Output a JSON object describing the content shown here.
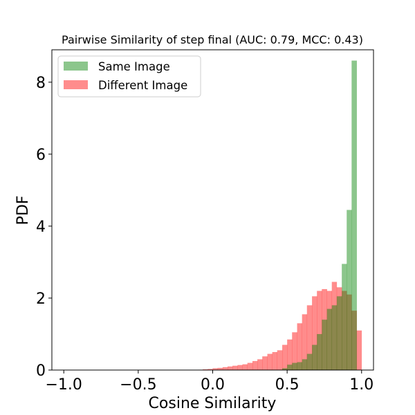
{
  "chart_data": {
    "type": "bar",
    "title": "Pairwise Similarity of step final (AUC: 0.79, MCC: 0.43)",
    "xlabel": "Cosine Similarity",
    "ylabel": "PDF",
    "xlim": [
      -1.08,
      1.08
    ],
    "ylim": [
      0,
      8.9
    ],
    "xticks": [
      -1.0,
      -0.5,
      0.0,
      0.5,
      1.0
    ],
    "xtick_labels": [
      "−1.0",
      "−0.5",
      "0.0",
      "0.5",
      "1.0"
    ],
    "yticks": [
      0,
      2,
      4,
      6,
      8
    ],
    "ytick_labels": [
      "0",
      "2",
      "4",
      "6",
      "8"
    ],
    "grid": false,
    "legend_position": "upper-left",
    "series": [
      {
        "name": "Different Image",
        "color": "#ff0000",
        "alpha": 0.45,
        "bins": [
          [
            -0.1,
            -0.067,
            0.01
          ],
          [
            -0.067,
            -0.033,
            0.02
          ],
          [
            -0.033,
            0.0,
            0.03
          ],
          [
            0.0,
            0.033,
            0.05
          ],
          [
            0.033,
            0.067,
            0.06
          ],
          [
            0.067,
            0.1,
            0.08
          ],
          [
            0.1,
            0.133,
            0.1
          ],
          [
            0.133,
            0.167,
            0.12
          ],
          [
            0.167,
            0.2,
            0.14
          ],
          [
            0.2,
            0.233,
            0.16
          ],
          [
            0.233,
            0.267,
            0.2
          ],
          [
            0.267,
            0.3,
            0.25
          ],
          [
            0.3,
            0.333,
            0.3
          ],
          [
            0.333,
            0.367,
            0.38
          ],
          [
            0.367,
            0.4,
            0.45
          ],
          [
            0.4,
            0.433,
            0.5
          ],
          [
            0.433,
            0.467,
            0.55
          ],
          [
            0.467,
            0.5,
            0.7
          ],
          [
            0.5,
            0.533,
            0.85
          ],
          [
            0.533,
            0.567,
            1.05
          ],
          [
            0.567,
            0.6,
            1.3
          ],
          [
            0.6,
            0.633,
            1.55
          ],
          [
            0.633,
            0.667,
            1.8
          ],
          [
            0.667,
            0.7,
            2.05
          ],
          [
            0.7,
            0.733,
            2.2
          ],
          [
            0.733,
            0.767,
            2.25
          ],
          [
            0.767,
            0.8,
            2.2
          ],
          [
            0.8,
            0.833,
            2.45
          ],
          [
            0.833,
            0.867,
            2.3
          ],
          [
            0.867,
            0.9,
            2.2
          ],
          [
            0.9,
            0.933,
            2.1
          ],
          [
            0.933,
            0.967,
            1.65
          ],
          [
            0.967,
            1.0,
            1.1
          ]
        ]
      },
      {
        "name": "Same Image",
        "color": "#008000",
        "alpha": 0.45,
        "bins": [
          [
            0.433,
            0.467,
            0.01
          ],
          [
            0.467,
            0.5,
            0.05
          ],
          [
            0.5,
            0.533,
            0.15
          ],
          [
            0.533,
            0.567,
            0.2
          ],
          [
            0.567,
            0.6,
            0.22
          ],
          [
            0.6,
            0.633,
            0.3
          ],
          [
            0.633,
            0.667,
            0.45
          ],
          [
            0.667,
            0.7,
            0.7
          ],
          [
            0.7,
            0.733,
            1.0
          ],
          [
            0.733,
            0.767,
            1.4
          ],
          [
            0.767,
            0.8,
            1.7
          ],
          [
            0.8,
            0.833,
            1.8
          ],
          [
            0.833,
            0.867,
            2.05
          ],
          [
            0.867,
            0.9,
            2.95
          ],
          [
            0.9,
            0.933,
            4.45
          ],
          [
            0.933,
            0.967,
            8.6
          ],
          [
            0.967,
            1.0,
            0.0
          ]
        ]
      }
    ]
  }
}
